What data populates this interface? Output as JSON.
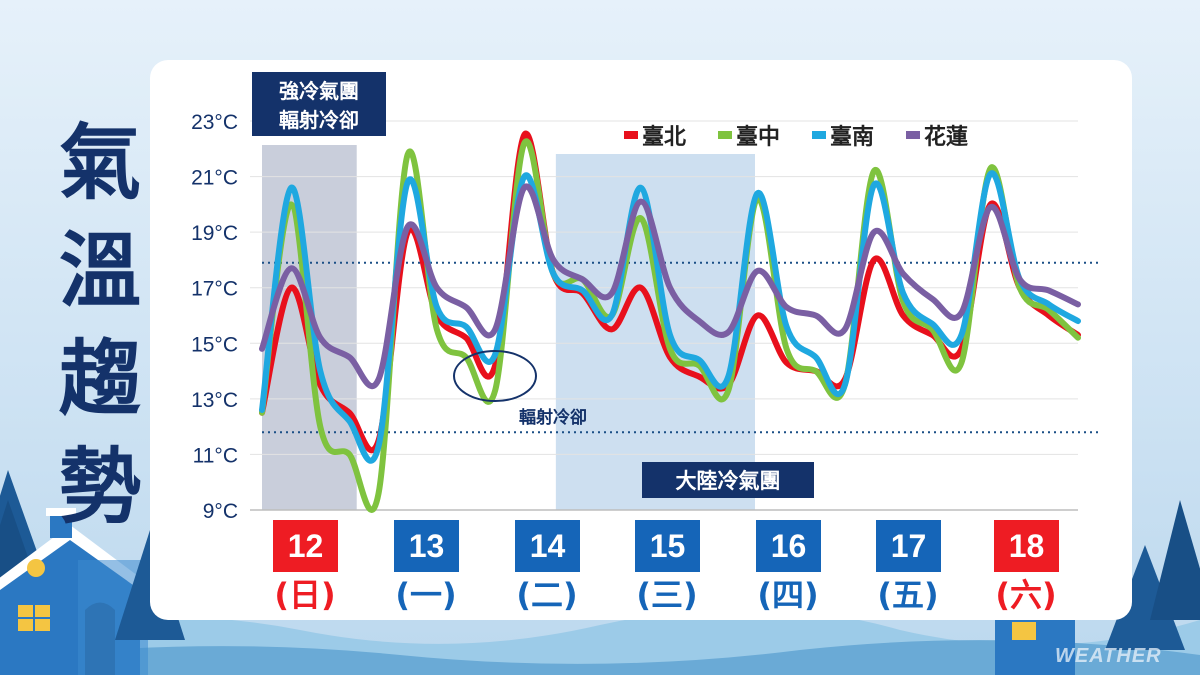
{
  "title": [
    "氣",
    "溫",
    "趨",
    "勢"
  ],
  "watermark": "WEATHER",
  "colors": {
    "taipei": "#e8101c",
    "taichung": "#7fc33f",
    "tainan": "#1fa8e0",
    "hualien": "#7a5fa3",
    "navy": "#14326a",
    "weekday_blue": "#1565b8",
    "weekend_red": "#ee1c23"
  },
  "chart_data": {
    "type": "line",
    "ylim": [
      9,
      23
    ],
    "yticks": [
      "23°C",
      "21°C",
      "19°C",
      "17°C",
      "15°C",
      "13°C",
      "11°C",
      "9°C"
    ],
    "ytick_values": [
      23,
      21,
      19,
      17,
      15,
      13,
      11,
      9
    ],
    "legend": [
      "臺北",
      "臺中",
      "臺南",
      "花蓮"
    ],
    "legend_position": "top-right",
    "x_hours": [
      0,
      6,
      12,
      18,
      24,
      30,
      36,
      42,
      48,
      54,
      60,
      66,
      72,
      78,
      84,
      90,
      96,
      102,
      108,
      114,
      120,
      126,
      132,
      138,
      144,
      150,
      156,
      162,
      168
    ],
    "series": [
      {
        "name": "臺北",
        "values": [
          12.5,
          17.0,
          13.5,
          12.5,
          11.5,
          19.0,
          16.0,
          15.2,
          14.2,
          22.5,
          17.5,
          16.8,
          15.5,
          17.0,
          14.5,
          13.8,
          13.5,
          16.0,
          14.3,
          14.0,
          13.7,
          18.0,
          16.0,
          15.3,
          14.8,
          20.0,
          17.0,
          16.0,
          15.3
        ]
      },
      {
        "name": "臺中",
        "values": [
          12.5,
          20.0,
          12.0,
          11.0,
          9.6,
          21.8,
          15.5,
          14.5,
          13.3,
          22.2,
          17.5,
          17.3,
          16.0,
          19.5,
          14.8,
          14.2,
          13.3,
          20.2,
          14.8,
          14.0,
          13.5,
          21.2,
          16.5,
          15.5,
          14.3,
          21.3,
          17.0,
          16.2,
          15.2
        ]
      },
      {
        "name": "臺南",
        "values": [
          12.6,
          20.6,
          14.0,
          12.2,
          11.3,
          20.8,
          16.3,
          15.6,
          14.6,
          21.0,
          17.5,
          16.9,
          16.0,
          20.6,
          15.3,
          14.4,
          13.8,
          20.4,
          15.6,
          14.5,
          13.5,
          20.7,
          16.8,
          15.7,
          15.3,
          21.1,
          17.3,
          16.4,
          15.8
        ]
      },
      {
        "name": "花蓮",
        "values": [
          14.8,
          17.7,
          15.2,
          14.5,
          13.7,
          19.2,
          17.0,
          16.3,
          15.5,
          20.6,
          18.0,
          17.3,
          16.8,
          20.1,
          17.0,
          15.8,
          15.4,
          17.6,
          16.3,
          16.0,
          15.5,
          19.0,
          17.5,
          16.6,
          16.1,
          19.9,
          17.3,
          16.9,
          16.4
        ]
      }
    ],
    "cold_period_labels": {
      "strong": [
        "強冷氣團",
        "輻射冷卻"
      ],
      "continental": "大陸冷氣團"
    },
    "annotation": "輻射冷卻",
    "reference_lines": [
      17.9,
      11.8
    ],
    "days": [
      {
        "date": "12",
        "weekday": "(日)",
        "weekend": true
      },
      {
        "date": "13",
        "weekday": "(一)",
        "weekend": false
      },
      {
        "date": "14",
        "weekday": "(二)",
        "weekend": false
      },
      {
        "date": "15",
        "weekday": "(三)",
        "weekend": false
      },
      {
        "date": "16",
        "weekday": "(四)",
        "weekend": false
      },
      {
        "date": "17",
        "weekday": "(五)",
        "weekend": false
      },
      {
        "date": "18",
        "weekday": "(六)",
        "weekend": true
      }
    ]
  }
}
